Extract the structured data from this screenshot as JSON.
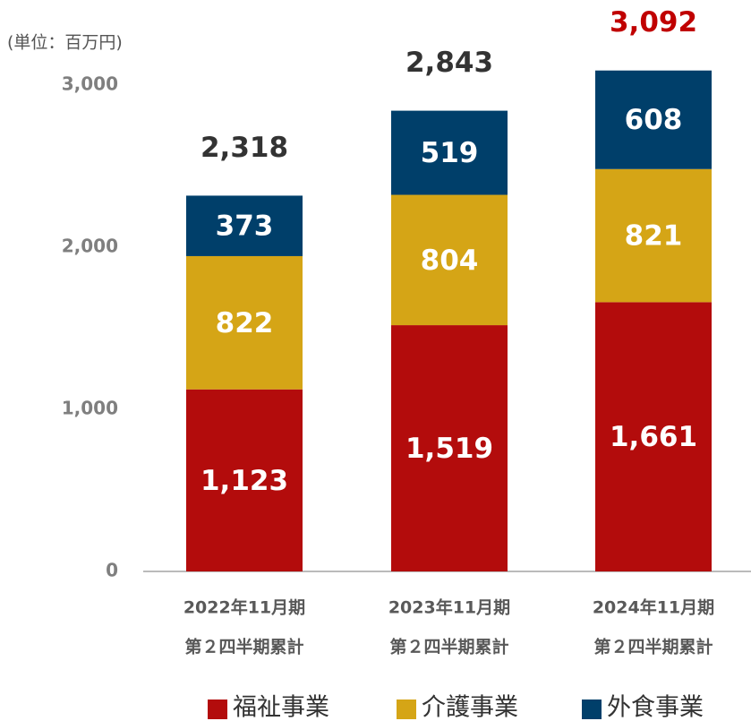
{
  "chart_data": {
    "type": "stacked_bar",
    "unit_label": "(単位：百万円)",
    "categories": [
      [
        "2022年11月期",
        "第２四半期累計"
      ],
      [
        "2023年11月期",
        "第２四半期累計"
      ],
      [
        "2024年11月期",
        "第２四半期累計"
      ]
    ],
    "series": [
      {
        "name": "福祉事業",
        "color": "#b30c0c",
        "values": [
          1123,
          1519,
          1661
        ],
        "value_labels": [
          "1,123",
          "1,519",
          "1,661"
        ]
      },
      {
        "name": "介護事業",
        "color": "#d5a516",
        "values": [
          822,
          804,
          821
        ]
      },
      {
        "name": "外食事業",
        "color": "#003f6a",
        "values": [
          373,
          519,
          608
        ]
      }
    ],
    "totals": [
      2318,
      2843,
      3092
    ],
    "total_labels": [
      "2,318",
      "2,843",
      "3,092"
    ],
    "total_colors": [
      "#333333",
      "#333333",
      "#c00000"
    ],
    "ylim": [
      0,
      3000
    ],
    "yticks": [
      0,
      {
        "value": 1000,
        "label": "1,000"
      },
      {
        "value": 2000,
        "label": "2,000"
      },
      {
        "value": 3000,
        "label": "3,000"
      }
    ],
    "grid": false
  }
}
